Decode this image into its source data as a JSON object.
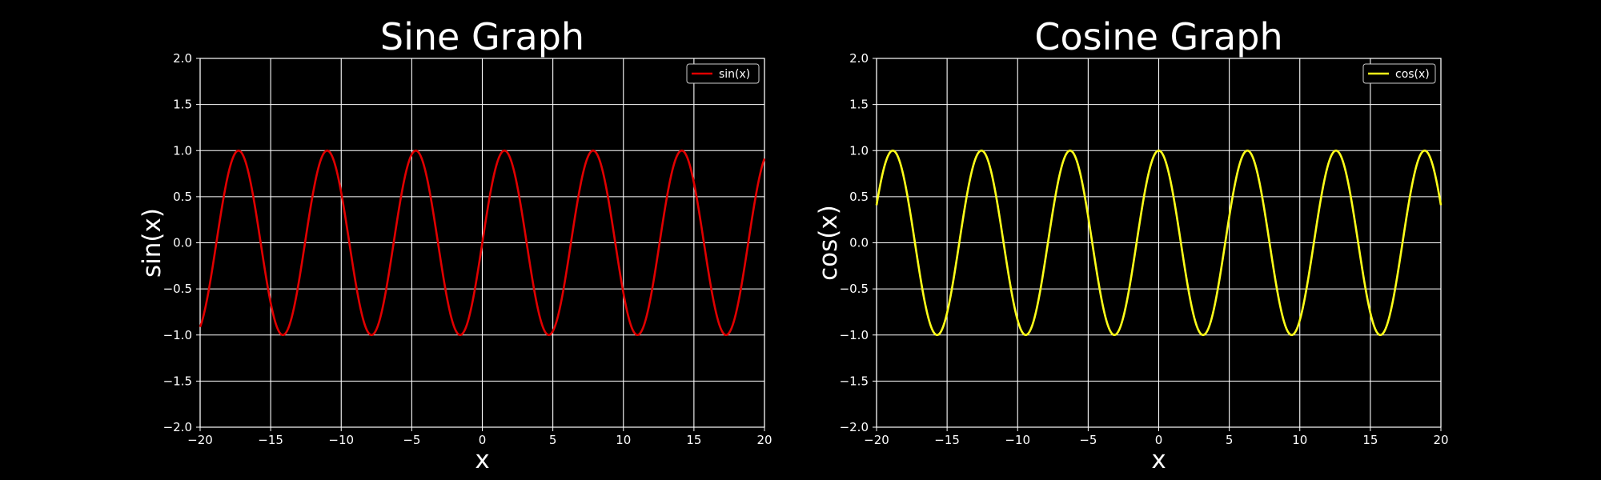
{
  "figure": {
    "background": "#000000",
    "foreground": "#ffffff",
    "grid_color": "#ffffff"
  },
  "chart_data": [
    {
      "type": "line",
      "title": "Sine Graph",
      "xlabel": "x",
      "ylabel": "sin(x)",
      "xlim": [
        -20,
        20
      ],
      "ylim": [
        -2.0,
        2.0
      ],
      "xticks": [
        -20,
        -15,
        -10,
        -5,
        0,
        5,
        10,
        15,
        20
      ],
      "xtick_labels": [
        "−20",
        "−15",
        "−10",
        "−5",
        "0",
        "5",
        "10",
        "15",
        "20"
      ],
      "yticks": [
        -2.0,
        -1.5,
        -1.0,
        -0.5,
        0.0,
        0.5,
        1.0,
        1.5,
        2.0
      ],
      "ytick_labels": [
        "−2.0",
        "−1.5",
        "−1.0",
        "−0.5",
        "0.0",
        "0.5",
        "1.0",
        "1.5",
        "2.0"
      ],
      "grid": true,
      "legend": "top-right",
      "series": [
        {
          "name": "sin(x)",
          "function": "sin",
          "color": "#e00000",
          "points": [
            [
              -20,
              -0.913
            ],
            [
              -17.28,
              1.0
            ],
            [
              -14.14,
              -1.0
            ],
            [
              -10.99,
              1.0
            ],
            [
              -7.85,
              -1.0
            ],
            [
              -4.71,
              1.0
            ],
            [
              -1.57,
              -1.0
            ],
            [
              1.57,
              1.0
            ],
            [
              4.71,
              -1.0
            ],
            [
              7.85,
              1.0
            ],
            [
              10.99,
              -1.0
            ],
            [
              14.14,
              1.0
            ],
            [
              17.28,
              -1.0
            ],
            [
              20,
              0.913
            ]
          ]
        }
      ]
    },
    {
      "type": "line",
      "title": "Cosine Graph",
      "xlabel": "x",
      "ylabel": "cos(x)",
      "xlim": [
        -20,
        20
      ],
      "ylim": [
        -2.0,
        2.0
      ],
      "xticks": [
        -20,
        -15,
        -10,
        -5,
        0,
        5,
        10,
        15,
        20
      ],
      "xtick_labels": [
        "−20",
        "−15",
        "−10",
        "−5",
        "0",
        "5",
        "10",
        "15",
        "20"
      ],
      "yticks": [
        -2.0,
        -1.5,
        -1.0,
        -0.5,
        0.0,
        0.5,
        1.0,
        1.5,
        2.0
      ],
      "ytick_labels": [
        "−2.0",
        "−1.5",
        "−1.0",
        "−0.5",
        "0.0",
        "0.5",
        "1.0",
        "1.5",
        "2.0"
      ],
      "grid": true,
      "legend": "top-right",
      "series": [
        {
          "name": "cos(x)",
          "function": "cos",
          "color": "#ffff1a",
          "points": [
            [
              -20,
              0.408
            ],
            [
              -18.85,
              1.0
            ],
            [
              -15.71,
              -1.0
            ],
            [
              -12.57,
              1.0
            ],
            [
              -9.42,
              -1.0
            ],
            [
              -6.28,
              1.0
            ],
            [
              -3.14,
              -1.0
            ],
            [
              0,
              1.0
            ],
            [
              3.14,
              -1.0
            ],
            [
              6.28,
              1.0
            ],
            [
              9.42,
              -1.0
            ],
            [
              12.57,
              1.0
            ],
            [
              15.71,
              -1.0
            ],
            [
              18.85,
              1.0
            ],
            [
              20,
              0.408
            ]
          ]
        }
      ]
    }
  ]
}
